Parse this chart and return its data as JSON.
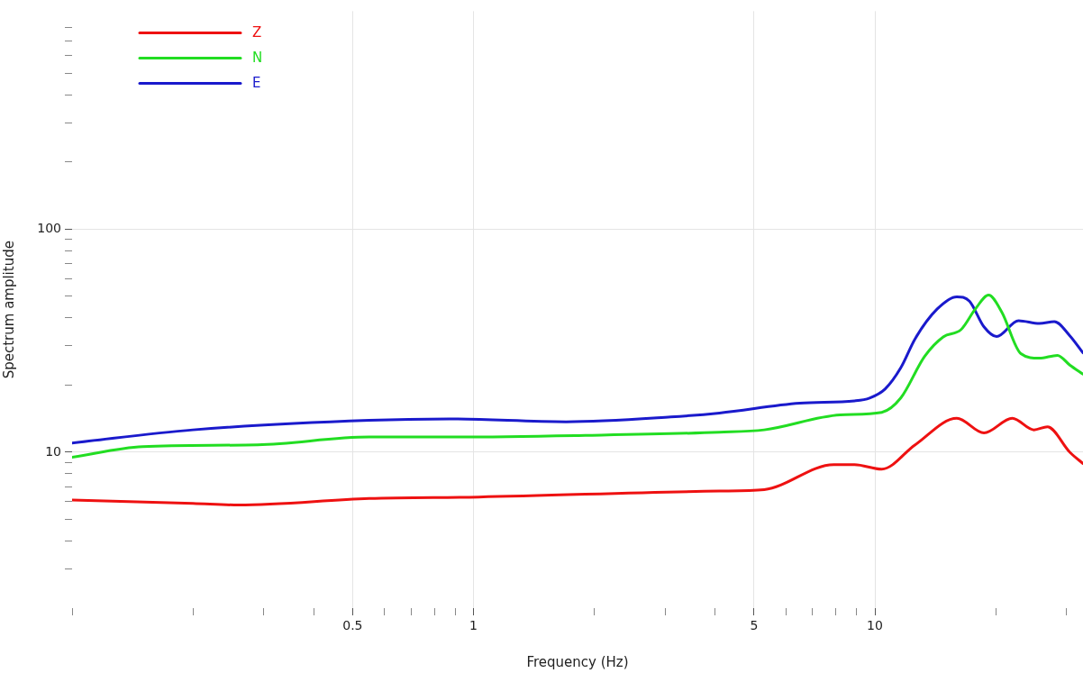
{
  "chart_data": {
    "type": "line",
    "xlabel": "Frequency (Hz)",
    "ylabel": "Spectrum amplitude",
    "log": "xy",
    "grid": true,
    "legend": "top left",
    "marker": "none",
    "line_style": "solid",
    "xlim": [
      0.1,
      33
    ],
    "ylim": [
      2,
      950
    ],
    "xticks": [
      {
        "value": 0.1,
        "label": null
      },
      {
        "value": 0.2,
        "label": null
      },
      {
        "value": 0.3,
        "label": null
      },
      {
        "value": 0.4,
        "label": null
      },
      0.5,
      {
        "value": 0.6,
        "label": null
      },
      {
        "value": 0.7,
        "label": null
      },
      {
        "value": 0.8,
        "label": null
      },
      {
        "value": 0.9,
        "label": null
      },
      1,
      {
        "value": 2,
        "label": null
      },
      {
        "value": 3,
        "label": null
      },
      {
        "value": 4,
        "label": null
      },
      5,
      {
        "value": 6,
        "label": null
      },
      {
        "value": 7,
        "label": null
      },
      {
        "value": 8,
        "label": null
      },
      {
        "value": 9,
        "label": null
      },
      10,
      {
        "value": 20,
        "label": null
      },
      {
        "value": 30,
        "label": null
      }
    ],
    "yticks": [
      {
        "value": 3,
        "label": null
      },
      {
        "value": 4,
        "label": null
      },
      {
        "value": 5,
        "label": null
      },
      {
        "value": 6,
        "label": null
      },
      {
        "value": 7,
        "label": null
      },
      {
        "value": 8,
        "label": null
      },
      {
        "value": 9,
        "label": null
      },
      10,
      {
        "value": 20,
        "label": null
      },
      {
        "value": 30,
        "label": null
      },
      {
        "value": 40,
        "label": null
      },
      {
        "value": 50,
        "label": null
      },
      {
        "value": 60,
        "label": null
      },
      {
        "value": 70,
        "label": null
      },
      {
        "value": 80,
        "label": null
      },
      {
        "value": 90,
        "label": null
      },
      100,
      {
        "value": 200,
        "label": null
      },
      {
        "value": 300,
        "label": null
      },
      {
        "value": 400,
        "label": null
      },
      {
        "value": 500,
        "label": null
      },
      {
        "value": 600,
        "label": null
      },
      {
        "value": 700,
        "label": null
      },
      {
        "value": 800,
        "label": null
      }
    ],
    "series": [
      {
        "name": "Z",
        "color": "#ee1111",
        "x": [
          0.1,
          0.2,
          0.26,
          0.55,
          1.03,
          4.1,
          5.3,
          7.9,
          8.9,
          10.4,
          12.6,
          16.0,
          18.7,
          22.0,
          24.9,
          26.9,
          30.6,
          33
        ],
        "values": [
          6.1,
          5.9,
          5.8,
          6.2,
          6.3,
          6.7,
          6.8,
          8.8,
          8.8,
          8.4,
          10.8,
          14.2,
          12.2,
          14.2,
          12.6,
          13.0,
          10.0,
          8.9
        ]
      },
      {
        "name": "N",
        "color": "#22dd22",
        "x": [
          0.1,
          0.15,
          0.29,
          0.55,
          0.91,
          1.9,
          4.1,
          5.3,
          8.2,
          10.4,
          11.6,
          13.3,
          14.8,
          16.4,
          17.8,
          19.2,
          20.7,
          23.1,
          25.7,
          28.5,
          30.6,
          33
        ],
        "values": [
          9.5,
          10.6,
          10.8,
          11.7,
          11.7,
          11.9,
          12.3,
          12.6,
          14.7,
          15.1,
          17.5,
          26.9,
          32.9,
          35.5,
          43.9,
          50.7,
          42.6,
          27.7,
          26.4,
          27.2,
          24.6,
          22.4
        ]
      },
      {
        "name": "E",
        "color": "#1a1acc",
        "x": [
          0.1,
          0.2,
          0.55,
          0.87,
          1.7,
          3.1,
          4.1,
          6.5,
          8.9,
          9.7,
          10.6,
          11.6,
          12.6,
          14.3,
          16.0,
          17.2,
          18.7,
          20.1,
          22.8,
          25.7,
          28.0,
          30.6,
          33
        ],
        "values": [
          11,
          12.6,
          13.9,
          14.1,
          13.7,
          14.4,
          15.0,
          16.6,
          17.0,
          17.5,
          19.2,
          23.9,
          32.3,
          43.9,
          49.8,
          47.6,
          36.5,
          33.0,
          38.9,
          37.8,
          38.5,
          33.3,
          27.9
        ]
      }
    ]
  }
}
